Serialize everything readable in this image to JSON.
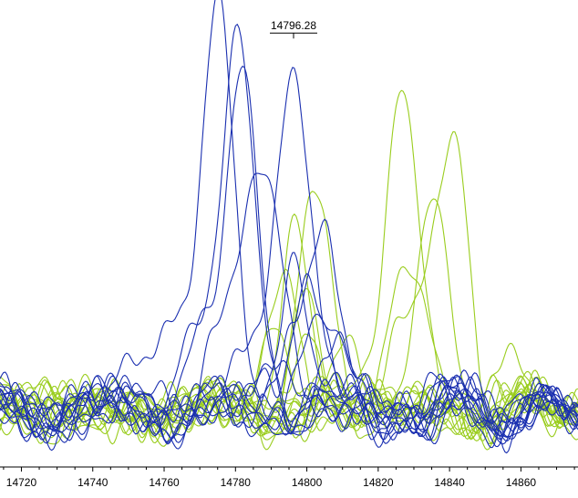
{
  "chart_data": {
    "type": "line",
    "title": "",
    "xlabel": "",
    "ylabel": "",
    "xlim": [
      14714,
      14876
    ],
    "ylim": [
      0,
      100
    ],
    "x_ticks": [
      14720,
      14740,
      14760,
      14780,
      14800,
      14820,
      14840,
      14860
    ],
    "grid": false,
    "legend": "none",
    "colors": {
      "blue": "#1a2fb0",
      "green": "#9acd1e",
      "axis": "#000000"
    },
    "peak_annotation": {
      "label": "14796.28",
      "x": 14796.28,
      "y": 94
    },
    "series": [
      {
        "color": "blue",
        "baseline": 12,
        "peaks": [
          {
            "x": 14775,
            "h": 83,
            "w": 4.5
          },
          {
            "x": 14764,
            "h": 20,
            "w": 5
          },
          {
            "x": 14750,
            "h": 8,
            "w": 6
          }
        ]
      },
      {
        "color": "blue",
        "baseline": 12,
        "peaks": [
          {
            "x": 14781,
            "h": 82,
            "w": 4.2
          },
          {
            "x": 14770,
            "h": 18,
            "w": 5
          }
        ]
      },
      {
        "color": "blue",
        "baseline": 12,
        "peaks": [
          {
            "x": 14796.28,
            "h": 80,
            "w": 4.5
          },
          {
            "x": 14786,
            "h": 12,
            "w": 4
          }
        ]
      },
      {
        "color": "blue",
        "baseline": 12,
        "peaks": [
          {
            "x": 14782,
            "h": 69,
            "w": 4.5
          },
          {
            "x": 14771,
            "h": 16,
            "w": 5
          }
        ]
      },
      {
        "color": "blue",
        "baseline": 12,
        "peaks": [
          {
            "x": 14788,
            "h": 57,
            "w": 5
          },
          {
            "x": 14777,
            "h": 14,
            "w": 5
          }
        ]
      },
      {
        "color": "blue",
        "baseline": 12,
        "peaks": [
          {
            "x": 14804,
            "h": 40,
            "w": 4.5
          },
          {
            "x": 14795,
            "h": 12,
            "w": 4
          }
        ]
      },
      {
        "color": "blue",
        "baseline": 12,
        "peaks": [
          {
            "x": 14797,
            "h": 34,
            "w": 4
          }
        ]
      },
      {
        "color": "blue",
        "baseline": 12,
        "peaks": [
          {
            "x": 14800,
            "h": 28,
            "w": 4
          },
          {
            "x": 14790,
            "h": 8,
            "w": 4
          }
        ]
      },
      {
        "color": "blue",
        "baseline": 12,
        "peaks": [
          {
            "x": 14805,
            "h": 22,
            "w": 5
          }
        ]
      },
      {
        "color": "blue",
        "baseline": 12,
        "peaks": [
          {
            "x": 14793,
            "h": 14,
            "w": 4
          }
        ]
      },
      {
        "color": "blue",
        "baseline": 12,
        "peaks": [
          {
            "x": 14808,
            "h": 10,
            "w": 5
          }
        ]
      },
      {
        "color": "blue",
        "baseline": 12,
        "peaks": []
      },
      {
        "color": "blue",
        "baseline": 12,
        "peaks": []
      },
      {
        "color": "blue",
        "baseline": 12,
        "peaks": [
          {
            "x": 14752,
            "h": 6,
            "w": 6
          }
        ]
      },
      {
        "color": "green",
        "baseline": 12,
        "peaks": [
          {
            "x": 14827,
            "h": 68,
            "w": 4.5
          },
          {
            "x": 14818,
            "h": 10,
            "w": 4
          }
        ]
      },
      {
        "color": "green",
        "baseline": 12,
        "peaks": [
          {
            "x": 14841,
            "h": 55,
            "w": 4.5
          },
          {
            "x": 14829,
            "h": 24,
            "w": 5
          }
        ]
      },
      {
        "color": "green",
        "baseline": 12,
        "peaks": [
          {
            "x": 14835,
            "h": 40,
            "w": 5
          }
        ]
      },
      {
        "color": "green",
        "baseline": 12,
        "peaks": [
          {
            "x": 14827,
            "h": 32,
            "w": 5
          }
        ]
      },
      {
        "color": "green",
        "baseline": 12,
        "peaks": [
          {
            "x": 14802,
            "h": 46,
            "w": 4.5
          }
        ]
      },
      {
        "color": "green",
        "baseline": 12,
        "peaks": [
          {
            "x": 14796,
            "h": 37,
            "w": 4
          }
        ]
      },
      {
        "color": "green",
        "baseline": 12,
        "peaks": [
          {
            "x": 14794,
            "h": 31,
            "w": 4
          }
        ]
      },
      {
        "color": "green",
        "baseline": 12,
        "peaks": [
          {
            "x": 14799,
            "h": 27,
            "w": 4
          }
        ]
      },
      {
        "color": "green",
        "baseline": 12,
        "peaks": [
          {
            "x": 14792,
            "h": 20,
            "w": 4
          }
        ]
      },
      {
        "color": "green",
        "baseline": 12,
        "peaks": [
          {
            "x": 14801,
            "h": 16,
            "w": 4
          }
        ]
      },
      {
        "color": "green",
        "baseline": 12,
        "peaks": [
          {
            "x": 14810,
            "h": 12,
            "w": 5
          }
        ]
      },
      {
        "color": "green",
        "baseline": 12,
        "peaks": [
          {
            "x": 14856,
            "h": 8,
            "w": 6
          }
        ]
      },
      {
        "color": "green",
        "baseline": 12,
        "peaks": []
      },
      {
        "color": "green",
        "baseline": 12,
        "peaks": []
      },
      {
        "color": "green",
        "baseline": 12,
        "peaks": []
      },
      {
        "color": "green",
        "baseline": 12,
        "peaks": []
      }
    ]
  }
}
